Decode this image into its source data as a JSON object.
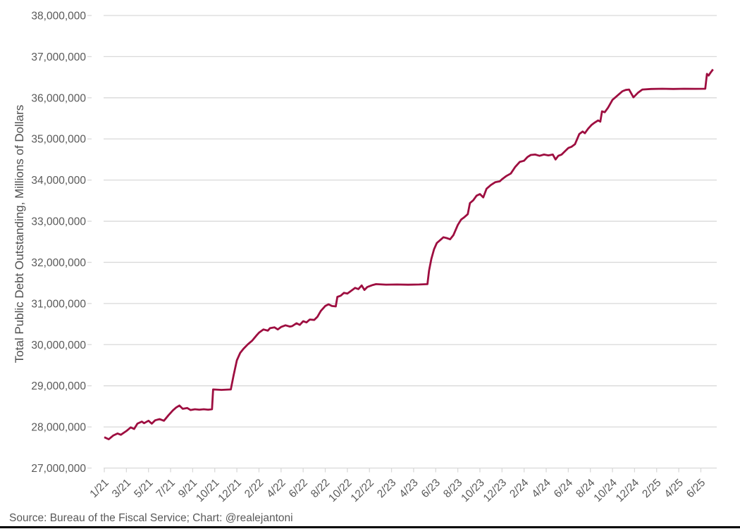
{
  "page": {
    "background": "#ffffff",
    "bottom_border_color": "#000000"
  },
  "source_note": "Source: Bureau of the Fiscal Service; Chart: @realejantoni",
  "y_axis": {
    "title": "Total Public Debt Outstanding, Millions of Dollars",
    "tick_values": [
      38000000,
      37000000,
      36000000,
      35000000,
      34000000,
      33000000,
      32000000,
      31000000,
      30000000,
      29000000,
      28000000,
      27000000
    ],
    "label_color": "#595959",
    "gridline_color": "#d9d9d9"
  },
  "x_axis": {
    "tick_labels": [
      "1/21",
      "3/21",
      "5/21",
      "7/21",
      "9/21",
      "10/21",
      "12/21",
      "2/22",
      "4/22",
      "6/22",
      "8/22",
      "10/22",
      "12/22",
      "2/23",
      "4/23",
      "6/23",
      "8/23",
      "10/23",
      "12/23",
      "2/24",
      "4/24",
      "6/24",
      "8/24",
      "10/24",
      "12/24",
      "2/25",
      "4/25",
      "6/25"
    ],
    "label_color": "#595959"
  },
  "chart_data": {
    "type": "line",
    "title": "",
    "xlabel": "",
    "ylabel": "Total Public Debt Outstanding, Millions of Dollars",
    "ylim": [
      27000000,
      38000000
    ],
    "y_tick_step": 1000000,
    "grid": true,
    "legend": false,
    "line_color": "#9E0E40",
    "x_unit": "months_since_jan_2021",
    "x_ticks_every_months": 2,
    "x_tick_labels": [
      "1/21",
      "3/21",
      "5/21",
      "7/21",
      "9/21",
      "10/21",
      "12/21",
      "2/22",
      "4/22",
      "6/22",
      "8/22",
      "10/22",
      "12/22",
      "2/23",
      "4/23",
      "6/23",
      "8/23",
      "10/23",
      "12/23",
      "2/24",
      "4/24",
      "6/24",
      "8/24",
      "10/24",
      "12/24",
      "2/25",
      "4/25",
      "6/25"
    ],
    "series": [
      {
        "name": "Total Public Debt Outstanding",
        "points": [
          [
            0,
            27750000
          ],
          [
            0.4,
            27700000
          ],
          [
            0.8,
            27790000
          ],
          [
            1.2,
            27840000
          ],
          [
            1.5,
            27810000
          ],
          [
            2,
            27900000
          ],
          [
            2.4,
            27990000
          ],
          [
            2.7,
            27950000
          ],
          [
            3,
            28080000
          ],
          [
            3.4,
            28130000
          ],
          [
            3.6,
            28090000
          ],
          [
            4,
            28150000
          ],
          [
            4.3,
            28080000
          ],
          [
            4.6,
            28160000
          ],
          [
            5,
            28190000
          ],
          [
            5.4,
            28150000
          ],
          [
            5.8,
            28280000
          ],
          [
            6.2,
            28400000
          ],
          [
            6.5,
            28470000
          ],
          [
            6.8,
            28520000
          ],
          [
            7.1,
            28440000
          ],
          [
            7.5,
            28460000
          ],
          [
            7.8,
            28410000
          ],
          [
            8.2,
            28430000
          ],
          [
            8.6,
            28420000
          ],
          [
            9,
            28430000
          ],
          [
            9.4,
            28420000
          ],
          [
            9.75,
            28430000
          ],
          [
            9.85,
            28910000
          ],
          [
            10.6,
            28900000
          ],
          [
            11.45,
            28910000
          ],
          [
            11.7,
            29250000
          ],
          [
            12,
            29620000
          ],
          [
            12.3,
            29800000
          ],
          [
            12.6,
            29900000
          ],
          [
            13,
            30010000
          ],
          [
            13.4,
            30100000
          ],
          [
            13.8,
            30230000
          ],
          [
            14,
            30290000
          ],
          [
            14.4,
            30370000
          ],
          [
            14.8,
            30340000
          ],
          [
            15,
            30400000
          ],
          [
            15.4,
            30420000
          ],
          [
            15.7,
            30370000
          ],
          [
            16,
            30430000
          ],
          [
            16.4,
            30470000
          ],
          [
            16.8,
            30440000
          ],
          [
            17,
            30450000
          ],
          [
            17.4,
            30520000
          ],
          [
            17.7,
            30480000
          ],
          [
            18,
            30570000
          ],
          [
            18.3,
            30540000
          ],
          [
            18.6,
            30610000
          ],
          [
            19,
            30600000
          ],
          [
            19.3,
            30680000
          ],
          [
            19.6,
            30820000
          ],
          [
            20,
            30940000
          ],
          [
            20.3,
            30980000
          ],
          [
            20.6,
            30940000
          ],
          [
            20.95,
            30930000
          ],
          [
            21.1,
            31160000
          ],
          [
            21.4,
            31190000
          ],
          [
            21.7,
            31260000
          ],
          [
            22,
            31240000
          ],
          [
            22.4,
            31320000
          ],
          [
            22.7,
            31380000
          ],
          [
            23,
            31350000
          ],
          [
            23.3,
            31440000
          ],
          [
            23.55,
            31330000
          ],
          [
            23.8,
            31400000
          ],
          [
            24,
            31420000
          ],
          [
            24.3,
            31450000
          ],
          [
            24.6,
            31470000
          ],
          [
            25.5,
            31458000
          ],
          [
            26.5,
            31462000
          ],
          [
            27.5,
            31456000
          ],
          [
            28.5,
            31462000
          ],
          [
            29.25,
            31470000
          ],
          [
            29.4,
            31800000
          ],
          [
            29.6,
            32080000
          ],
          [
            29.85,
            32320000
          ],
          [
            30.1,
            32470000
          ],
          [
            30.4,
            32540000
          ],
          [
            30.7,
            32610000
          ],
          [
            31,
            32590000
          ],
          [
            31.3,
            32560000
          ],
          [
            31.6,
            32660000
          ],
          [
            32,
            32910000
          ],
          [
            32.3,
            33040000
          ],
          [
            32.6,
            33100000
          ],
          [
            32.9,
            33170000
          ],
          [
            33.1,
            33440000
          ],
          [
            33.4,
            33510000
          ],
          [
            33.7,
            33620000
          ],
          [
            34,
            33660000
          ],
          [
            34.3,
            33580000
          ],
          [
            34.6,
            33790000
          ],
          [
            35,
            33880000
          ],
          [
            35.4,
            33950000
          ],
          [
            35.8,
            33970000
          ],
          [
            36,
            34020000
          ],
          [
            36.4,
            34100000
          ],
          [
            36.8,
            34160000
          ],
          [
            37.2,
            34320000
          ],
          [
            37.6,
            34440000
          ],
          [
            38,
            34470000
          ],
          [
            38.3,
            34560000
          ],
          [
            38.6,
            34610000
          ],
          [
            39,
            34620000
          ],
          [
            39.4,
            34590000
          ],
          [
            39.8,
            34620000
          ],
          [
            40.2,
            34600000
          ],
          [
            40.6,
            34620000
          ],
          [
            40.85,
            34500000
          ],
          [
            41.1,
            34590000
          ],
          [
            41.4,
            34620000
          ],
          [
            41.7,
            34700000
          ],
          [
            42,
            34780000
          ],
          [
            42.3,
            34810000
          ],
          [
            42.6,
            34870000
          ],
          [
            43,
            35120000
          ],
          [
            43.3,
            35180000
          ],
          [
            43.5,
            35140000
          ],
          [
            43.8,
            35250000
          ],
          [
            44.1,
            35340000
          ],
          [
            44.4,
            35400000
          ],
          [
            44.7,
            35450000
          ],
          [
            44.9,
            35420000
          ],
          [
            45.05,
            35670000
          ],
          [
            45.3,
            35650000
          ],
          [
            45.6,
            35760000
          ],
          [
            46,
            35950000
          ],
          [
            46.3,
            36020000
          ],
          [
            46.6,
            36090000
          ],
          [
            46.9,
            36160000
          ],
          [
            47.2,
            36190000
          ],
          [
            47.5,
            36200000
          ],
          [
            47.9,
            36010000
          ],
          [
            48.3,
            36120000
          ],
          [
            48.7,
            36200000
          ],
          [
            49.5,
            36215000
          ],
          [
            50.5,
            36220000
          ],
          [
            51.5,
            36215000
          ],
          [
            52.5,
            36220000
          ],
          [
            53.5,
            36218000
          ],
          [
            54.4,
            36220000
          ],
          [
            54.55,
            36580000
          ],
          [
            54.7,
            36540000
          ],
          [
            54.9,
            36620000
          ],
          [
            55.1,
            36690000
          ]
        ]
      }
    ]
  }
}
